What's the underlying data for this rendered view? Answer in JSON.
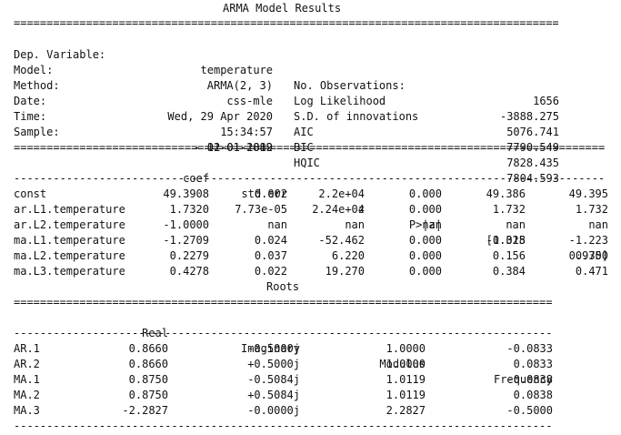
{
  "title": "ARMA Model Results",
  "summary_rows": [
    {
      "label": "Dep. Variable:",
      "value": "temperature",
      "label2": "No. Observations:",
      "value2": "1656"
    },
    {
      "label": "Model:",
      "value": "ARMA(2, 3)",
      "label2": "Log Likelihood",
      "value2": "-3888.275"
    },
    {
      "label": "Method:",
      "value": "css-mle",
      "label2": "S.D. of innovations",
      "value2": "5076.741"
    },
    {
      "label": "Date:",
      "value": "Wed, 29 Apr 2020",
      "label2": "AIC",
      "value2": "7790.549"
    },
    {
      "label": "Time:",
      "value": "15:34:57",
      "label2": "BIC",
      "value2": "7828.435"
    },
    {
      "label": "Sample:",
      "value": "01-01-1882",
      "label2": "HQIC",
      "value2": "7804.593"
    },
    {
      "label": "",
      "value": "- 12-01-2019",
      "label2": "",
      "value2": ""
    }
  ],
  "coef_table": {
    "headers": [
      "coef",
      "std err",
      "z",
      "P>|z|",
      "[0.025",
      "0.975]"
    ],
    "rows": [
      {
        "name": "const",
        "cells": [
          "49.3908",
          "0.002",
          "2.2e+04",
          "0.000",
          "49.386",
          "49.395"
        ]
      },
      {
        "name": "ar.L1.temperature",
        "cells": [
          "1.7320",
          "7.73e-05",
          "2.24e+04",
          "0.000",
          "1.732",
          "1.732"
        ]
      },
      {
        "name": "ar.L2.temperature",
        "cells": [
          "-1.0000",
          "nan",
          "nan",
          "nan",
          "nan",
          "nan"
        ]
      },
      {
        "name": "ma.L1.temperature",
        "cells": [
          "-1.2709",
          "0.024",
          "-52.462",
          "0.000",
          "-1.318",
          "-1.223"
        ]
      },
      {
        "name": "ma.L2.temperature",
        "cells": [
          "0.2279",
          "0.037",
          "6.220",
          "0.000",
          "0.156",
          "0.300"
        ]
      },
      {
        "name": "ma.L3.temperature",
        "cells": [
          "0.4278",
          "0.022",
          "19.270",
          "0.000",
          "0.384",
          "0.471"
        ]
      }
    ]
  },
  "roots_title": "Roots",
  "roots_table": {
    "headers": [
      "Real",
      "Imaginary",
      "Modulus",
      "Frequency"
    ],
    "rows": [
      {
        "name": "AR.1",
        "cells": [
          "0.8660",
          "-0.5000j",
          "1.0000",
          "-0.0833"
        ]
      },
      {
        "name": "AR.2",
        "cells": [
          "0.8660",
          "+0.5000j",
          "1.0000",
          "0.0833"
        ]
      },
      {
        "name": "MA.1",
        "cells": [
          "0.8750",
          "-0.5084j",
          "1.0119",
          "-0.0838"
        ]
      },
      {
        "name": "MA.2",
        "cells": [
          "0.8750",
          "+0.5084j",
          "1.0119",
          "0.0838"
        ]
      },
      {
        "name": "MA.3",
        "cells": [
          "-2.2827",
          "-0.0000j",
          "2.2827",
          "-0.5000"
        ]
      }
    ]
  },
  "rule_chars": {
    "double": "=",
    "single": "-"
  }
}
